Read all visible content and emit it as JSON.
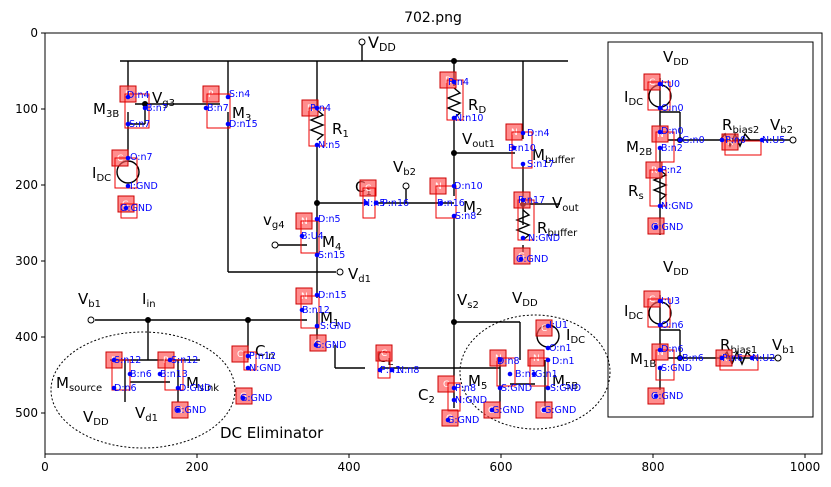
{
  "figure_title": "702.png",
  "x_ticks": [
    "0",
    "200",
    "400",
    "600",
    "800",
    "1000"
  ],
  "y_ticks": [
    "0",
    "100",
    "200",
    "300",
    "400",
    "500"
  ],
  "caption": "DC Eliminator",
  "symbols": {
    "vdd": "V",
    "vdd_sub": "DD",
    "vg3": "V",
    "vg3_sub": "g3",
    "m3b": "M",
    "m3b_sub": "3B",
    "m3": "M",
    "m3_sub": "3",
    "r1": "R",
    "r1_sub": "1",
    "rd": "R",
    "rd_sub": "D",
    "vout1": "V",
    "vout1_sub": "out1",
    "mbuffer": "M",
    "mbuffer_sub": "buffer",
    "idc": "I",
    "idc_sub": "DC",
    "vb2": "V",
    "vb2_sub": "b2",
    "c1": "C",
    "c1_sub": "1",
    "m2": "M",
    "m2_sub": "2",
    "vout": "V",
    "vout_sub": "out",
    "rbuffer": "R",
    "rbuffer_sub": "buffer",
    "vg4": "v",
    "vg4_sub": "g4",
    "m4": "M",
    "m4_sub": "4",
    "vd1": "V",
    "vd1_sub": "d1",
    "vb1": "V",
    "vb1_sub": "b1",
    "iin": "I",
    "iin_sub": "in",
    "m1": "M",
    "m1_sub": "1",
    "vs2": "V",
    "vs2_sub": "s2",
    "cin": "C",
    "cin_sub": "in",
    "cl": "C",
    "cl_sub": "L",
    "c2": "C",
    "c2_sub": "2",
    "m5": "M",
    "m5_sub": "5",
    "m5b": "M",
    "m5b_sub": "5B",
    "msource": "M",
    "msource_sub": "source",
    "msink": "M",
    "msink_sub": "sink",
    "rbias2": "R",
    "rbias2_sub": "bias2",
    "m2b": "M",
    "m2b_sub": "2B",
    "rs": "R",
    "rs_sub": "s",
    "rbias1": "R",
    "rbias1_sub": "bias1",
    "m1b": "M",
    "m1b_sub": "1B"
  },
  "component_letters": {
    "p": "P",
    "n": "N",
    "r": "R",
    "c": "C",
    "g": "G"
  },
  "node_labels": {
    "m3b_d": "D:n4",
    "m3b_b": "B:n7",
    "m3b_s": "S:n7",
    "m3_s": "S:n4",
    "m3_b": "B:n7",
    "m3_d": "D:n15",
    "idc_o": "O:n7",
    "idc_i": "I:GND",
    "g_idc": "G:GND",
    "r1_p": "P:n4",
    "r1_n": "N:n5",
    "rd_p": "P:n4",
    "rd_n": "N:n10",
    "mbuf_d": "D:n4",
    "mbuf_b": "B:n10",
    "mbuf_s": "S:n17",
    "c1_n": "N:n5",
    "c1_p": "P:n16",
    "m2_d": "D:n10",
    "m2_b": "B:n16",
    "m2_s": "S:n8",
    "rbuf_p": "P:n17",
    "rbuf_n": "N:GND",
    "g_rbuf": "G:GND",
    "m4_d": "D:n5",
    "m4_b": "B:U4",
    "m4_s": "S:n15",
    "m1_d": "D:n15",
    "m1_b": "B:n12",
    "m1_s": "S:GND",
    "g_m1": "G:GND",
    "cin_p": "P:n12",
    "cin_n": "N:GND",
    "g_cin": "G:GND",
    "cl_p": "P:n1",
    "cl_n": "N:n8",
    "c2_p": "P:n8",
    "c2_n": "N:GND",
    "g_c2": "G:GND",
    "m5_d": "D:n8",
    "m5_b": "B:n1",
    "m5_s": "S:GND",
    "g_m5": "G:GND",
    "m5b_d": "D:n1",
    "m5b_g": "G:n1",
    "m5b_s": "S:GND",
    "g_m5b": "G:GND",
    "idc2_i": "I:U1",
    "idc2_o": "O:n1",
    "msrc_s": "S:n12",
    "msrc_d": "D:n6",
    "msrc_b": "B:n6",
    "msnk_s": "S:n12",
    "msnk_b": "B:n13",
    "msnk_d": "D:GND",
    "g_msnk": "G:GND",
    "r_idc_i": "I:U0",
    "r_idc_o": "O:n0",
    "m2b_d": "D:n0",
    "m2b_b": "B:n2",
    "m2b_g": "G:n0",
    "rbias2_p": "P:n0",
    "rbias2_n": "N:U5",
    "rs_p": "P:n2",
    "rs_n": "N:GND",
    "g_rs": "G:GND",
    "r_idc1_i": "I:U3",
    "r_idc1_o": "O:n6",
    "m1b_d": "D:n6",
    "m1b_b": "B:n6",
    "m1b_s": "S:GND",
    "g_m1b": "G:GND",
    "rbias1_p": "P:n6",
    "rbias1_n": "N:U2"
  }
}
